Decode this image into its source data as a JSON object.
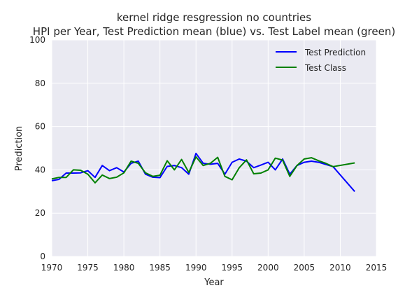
{
  "chart_data": {
    "type": "line",
    "title": "kernel ridge resgression no countries",
    "subtitle": "HPI per Year, Test Prediction mean (blue) vs. Test Label mean (green)",
    "xlabel": "Year",
    "ylabel": "Prediction",
    "xlim": [
      1970,
      2015
    ],
    "ylim": [
      0,
      100
    ],
    "xticks": [
      1970,
      1975,
      1980,
      1985,
      1990,
      1995,
      2000,
      2005,
      2010,
      2015
    ],
    "yticks": [
      0,
      20,
      40,
      60,
      80,
      100
    ],
    "grid": true,
    "legend_position": "top-right",
    "series": [
      {
        "name": "Test Prediction",
        "color": "#0000ff",
        "x": [
          1970,
          1971,
          1972,
          1973,
          1974,
          1975,
          1976,
          1977,
          1978,
          1979,
          1980,
          1981,
          1982,
          1983,
          1984,
          1985,
          1986,
          1987,
          1988,
          1989,
          1990,
          1991,
          1992,
          1993,
          1994,
          1995,
          1996,
          1997,
          1998,
          1999,
          2000,
          2001,
          2002,
          2003,
          2004,
          2005,
          2006,
          2007,
          2008,
          2009,
          2012
        ],
        "y": [
          35.0,
          35.6,
          38.5,
          38.5,
          38.6,
          39.6,
          36.5,
          42.0,
          39.6,
          41.0,
          39.0,
          43.0,
          44.0,
          38.0,
          36.6,
          36.4,
          41.6,
          42.0,
          41.0,
          38.0,
          47.6,
          43.0,
          42.6,
          43.0,
          38.0,
          43.5,
          45.0,
          44.0,
          41.0,
          42.2,
          43.5,
          40.0,
          45.0,
          38.0,
          42.0,
          43.5,
          44.0,
          43.5,
          42.5,
          41.5,
          30.0
        ]
      },
      {
        "name": "Test Class",
        "color": "#008000",
        "x": [
          1970,
          1971,
          1972,
          1973,
          1974,
          1975,
          1976,
          1977,
          1978,
          1979,
          1980,
          1981,
          1982,
          1983,
          1984,
          1985,
          1986,
          1987,
          1988,
          1989,
          1990,
          1991,
          1992,
          1993,
          1994,
          1995,
          1996,
          1997,
          1998,
          1999,
          2000,
          2001,
          2002,
          2003,
          2004,
          2005,
          2006,
          2007,
          2008,
          2009,
          2012
        ],
        "y": [
          35.8,
          36.5,
          36.5,
          40.0,
          39.8,
          38.0,
          34.0,
          37.6,
          36.0,
          36.6,
          38.6,
          44.0,
          43.0,
          38.6,
          37.0,
          37.5,
          44.2,
          40.0,
          44.8,
          38.8,
          46.0,
          42.0,
          43.0,
          45.8,
          37.0,
          35.4,
          41.0,
          44.6,
          38.2,
          38.5,
          40.0,
          45.4,
          44.5,
          37.0,
          42.0,
          45.0,
          45.6,
          44.2,
          43.0,
          41.5,
          43.2
        ]
      }
    ]
  }
}
